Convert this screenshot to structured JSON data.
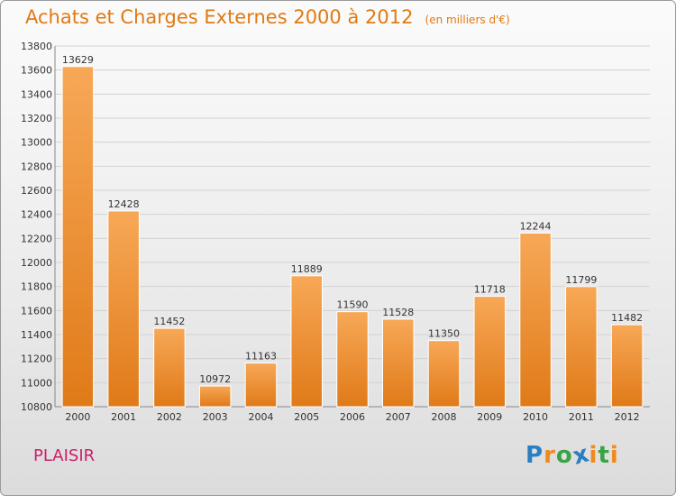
{
  "title": "Achats et Charges Externes 2000 à 2012",
  "unit_note": "(en milliers d'€)",
  "town": "PLAISIR",
  "logo": {
    "text": "Proxiti",
    "letters": [
      {
        "ch": "P",
        "color": "#2a7ec2"
      },
      {
        "ch": "r",
        "color": "#f08a1c"
      },
      {
        "ch": "o",
        "color": "#3aa346"
      },
      {
        "ch": "x",
        "color": "#2a7ec2"
      },
      {
        "ch": "i",
        "color": "#f08a1c"
      },
      {
        "ch": "t",
        "color": "#3aa346"
      },
      {
        "ch": "i",
        "color": "#f08a1c"
      }
    ]
  },
  "colors": {
    "bar_top": "#f7a857",
    "bar_bottom": "#e07a18",
    "title": "#e07a12",
    "town": "#cc1f6a"
  },
  "chart_data": {
    "type": "bar",
    "categories": [
      "2000",
      "2001",
      "2002",
      "2003",
      "2004",
      "2005",
      "2006",
      "2007",
      "2008",
      "2009",
      "2010",
      "2011",
      "2012"
    ],
    "values": [
      13629,
      12428,
      11452,
      10972,
      11163,
      11889,
      11590,
      11528,
      11350,
      11718,
      12244,
      11799,
      11482
    ],
    "ylim": [
      10800,
      13800
    ],
    "yticks": [
      10800,
      11000,
      11200,
      11400,
      11600,
      11800,
      12000,
      12200,
      12400,
      12600,
      12800,
      13000,
      13200,
      13400,
      13600,
      13800
    ],
    "grid": true,
    "legend": "none"
  }
}
